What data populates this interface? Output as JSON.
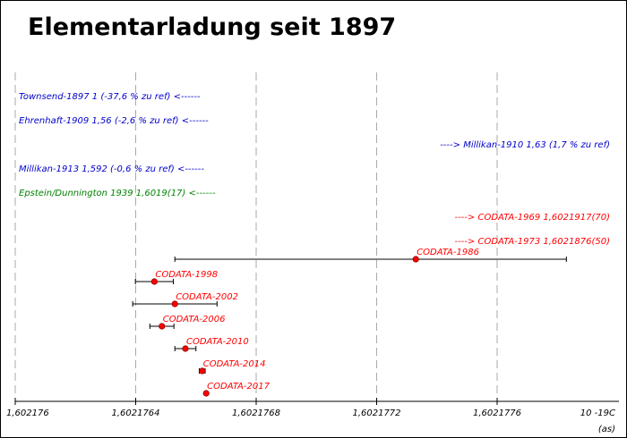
{
  "chart_data": {
    "type": "scatter",
    "title": "Elementarladung seit 1897",
    "xlabel": "10 -19C",
    "xunit_note": "(as)",
    "xlim": [
      1.602176,
      1.6021779
    ],
    "ticks": [
      "1,602176",
      "1,6021764",
      "1,6021768",
      "1,6021772",
      "1,6021776"
    ],
    "tick_values": [
      1.602176,
      1.6021764,
      1.6021768,
      1.6021772,
      1.6021776
    ],
    "offscale_annotations": [
      {
        "text": "Townsend-1897 1 (-37,6 % zu ref) <------",
        "color": "#0000cc",
        "side": "left"
      },
      {
        "text": "Ehrenhaft-1909 1,56 (-2,6 % zu ref) <------",
        "color": "#0000cc",
        "side": "left"
      },
      {
        "text": "----> Millikan-1910 1,63 (1,7 % zu ref)",
        "color": "#0000cc",
        "side": "right"
      },
      {
        "text": "Millikan-1913 1,592 (-0,6 % zu ref) <------",
        "color": "#0000cc",
        "side": "left"
      },
      {
        "text": "Epstein/Dunnington 1939 1,6019(17) <------",
        "color": "#008000",
        "side": "left"
      },
      {
        "text": "----> CODATA-1969 1,6021917(70)",
        "color": "#ff0000",
        "side": "right"
      },
      {
        "text": "----> CODATA-1973 1,6021876(50)",
        "color": "#ff0000",
        "side": "right"
      }
    ],
    "points": [
      {
        "label": "CODATA-1986",
        "value": 1.60217733,
        "lower": 1.60217653,
        "upper": 1.60217783
      },
      {
        "label": "CODATA-1998",
        "value": 1.602176462,
        "lower": 1.602176399,
        "upper": 1.602176525
      },
      {
        "label": "CODATA-2002",
        "value": 1.60217653,
        "lower": 1.60217639,
        "upper": 1.60217667
      },
      {
        "label": "CODATA-2006",
        "value": 1.602176487,
        "lower": 1.602176447,
        "upper": 1.602176527
      },
      {
        "label": "CODATA-2010",
        "value": 1.602176565,
        "lower": 1.60217653,
        "upper": 1.6021766
      },
      {
        "label": "CODATA-2014",
        "value": 1.6021766208,
        "lower": 1.602176611,
        "upper": 1.6021766306
      },
      {
        "label": "CODATA-2017",
        "value": 1.602176634,
        "lower": 1.602176634,
        "upper": 1.602176634
      }
    ],
    "colors": {
      "marker": "#ff0000",
      "label": "#ff0000",
      "errorbar": "#000000",
      "grid": "#aaaaaa",
      "axis": "#000000"
    }
  }
}
